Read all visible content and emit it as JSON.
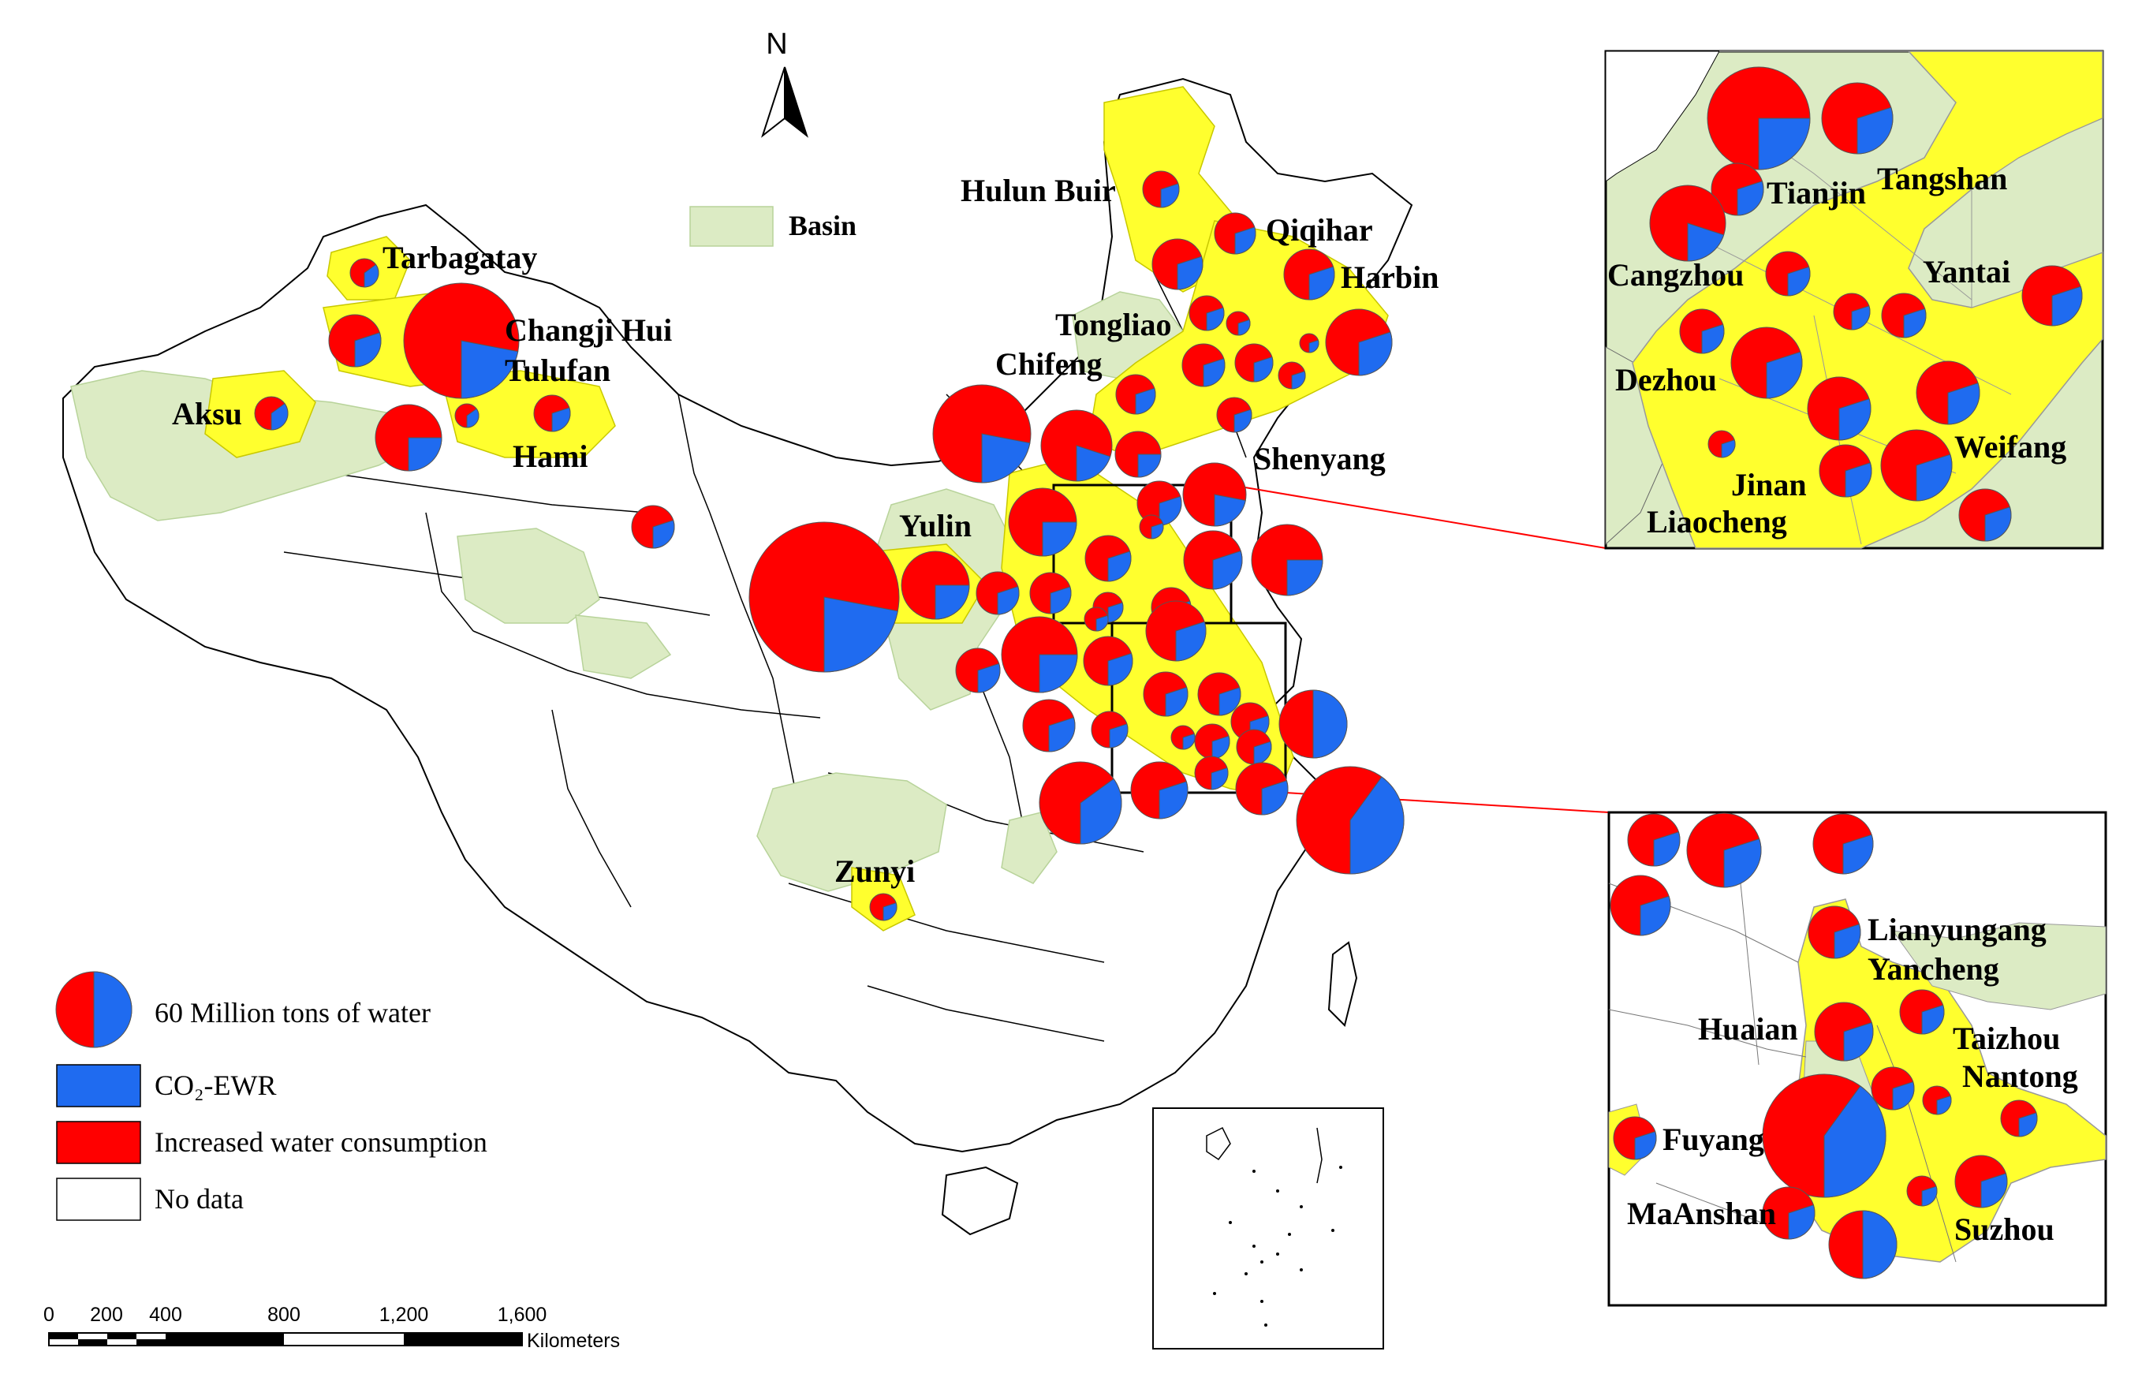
{
  "north_label": "N",
  "basin_label": "Basin",
  "legend": {
    "size_label": "60 Million tons of water",
    "co2_label": "CO₂-EWR",
    "increased_label": "Increased water consumption",
    "nodata_label": "No data",
    "colors": {
      "co2": "#1f6bf0",
      "increased": "#ff0000",
      "nodata": "#ffffff",
      "region": "#ffff2e",
      "basin": "#dcebc4"
    }
  },
  "scale_bar": {
    "ticks": [
      "0",
      "200",
      "400",
      "800",
      "1,200",
      "1,600"
    ],
    "unit": "Kilometers"
  },
  "main_labels": [
    {
      "id": "tarbagatay",
      "text": "Tarbagatay"
    },
    {
      "id": "changji",
      "text": "Changji Hui"
    },
    {
      "id": "tulufan",
      "text": "Tulufan"
    },
    {
      "id": "aksu",
      "text": "Aksu"
    },
    {
      "id": "hami",
      "text": "Hami"
    },
    {
      "id": "hulunbuir",
      "text": "Hulun Buir"
    },
    {
      "id": "qiqihar",
      "text": "Qiqihar"
    },
    {
      "id": "harbin",
      "text": "Harbin"
    },
    {
      "id": "tongliao",
      "text": "Tongliao"
    },
    {
      "id": "chifeng",
      "text": "Chifeng"
    },
    {
      "id": "shenyang",
      "text": "Shenyang"
    },
    {
      "id": "yulin",
      "text": "Yulin"
    },
    {
      "id": "zunyi",
      "text": "Zunyi"
    }
  ],
  "inset_north_labels": [
    {
      "id": "tianjin",
      "text": "Tianjin"
    },
    {
      "id": "tangshan",
      "text": "Tangshan"
    },
    {
      "id": "cangzhou",
      "text": "Cangzhou"
    },
    {
      "id": "yantai",
      "text": "Yantai"
    },
    {
      "id": "dezhou",
      "text": "Dezhou"
    },
    {
      "id": "weifang",
      "text": "Weifang"
    },
    {
      "id": "jinan",
      "text": "Jinan"
    },
    {
      "id": "liaocheng",
      "text": "Liaocheng"
    }
  ],
  "inset_south_labels": [
    {
      "id": "lianyungang",
      "text": "Lianyungang"
    },
    {
      "id": "yancheng",
      "text": "Yancheng"
    },
    {
      "id": "huaian",
      "text": "Huaian"
    },
    {
      "id": "taizhou",
      "text": "Taizhou"
    },
    {
      "id": "nantong",
      "text": "Nantong"
    },
    {
      "id": "fuyang",
      "text": "Fuyang"
    },
    {
      "id": "maanshan",
      "text": "MaAnshan"
    },
    {
      "id": "suzhou",
      "text": "Suzhou"
    }
  ]
}
